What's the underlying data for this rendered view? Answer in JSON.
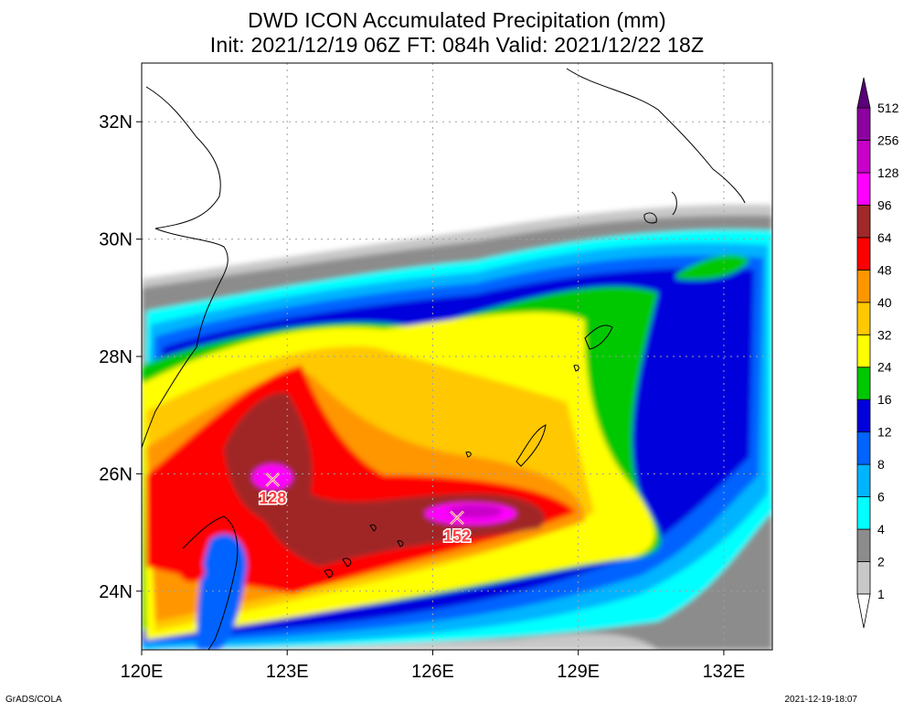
{
  "title": {
    "line1": "DWD ICON Accumulated Precipitation (mm)",
    "line2": "Init: 2021/12/19 06Z  FT: 084h  Valid: 2021/12/22 18Z"
  },
  "axes": {
    "x_ticks": [
      "120E",
      "123E",
      "126E",
      "129E",
      "132E"
    ],
    "y_ticks": [
      "24N",
      "26N",
      "28N",
      "30N",
      "32N"
    ],
    "lon_range": [
      120,
      133
    ],
    "lat_range": [
      23,
      33
    ]
  },
  "colorbar": {
    "levels": [
      "1",
      "2",
      "4",
      "6",
      "8",
      "12",
      "16",
      "24",
      "32",
      "40",
      "48",
      "64",
      "96",
      "128",
      "256",
      "512"
    ],
    "colors": [
      "#ffffff",
      "#c8c8c8",
      "#8c8c8c",
      "#00ffff",
      "#00b4ff",
      "#0064ff",
      "#0000dc",
      "#00c800",
      "#ffff00",
      "#ffc800",
      "#ff9600",
      "#ff0000",
      "#a02828",
      "#ff00ff",
      "#c800c8",
      "#8c00a0",
      "#5a0078"
    ]
  },
  "markers": [
    {
      "label": "128",
      "lon": 122.7,
      "lat": 25.9
    },
    {
      "label": "152",
      "lon": 126.5,
      "lat": 25.25
    }
  ],
  "footer": {
    "left": "GrADS/COLA",
    "right": "2021-12-19-18:07"
  }
}
